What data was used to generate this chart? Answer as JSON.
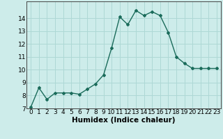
{
  "x": [
    0,
    1,
    2,
    3,
    4,
    5,
    6,
    7,
    8,
    9,
    10,
    11,
    12,
    13,
    14,
    15,
    16,
    17,
    18,
    19,
    20,
    21,
    22,
    23
  ],
  "y": [
    7.1,
    8.6,
    7.7,
    8.2,
    8.2,
    8.2,
    8.1,
    8.5,
    8.9,
    9.6,
    11.7,
    14.1,
    13.5,
    14.6,
    14.2,
    14.5,
    14.2,
    12.9,
    11.0,
    10.5,
    10.1,
    10.1,
    10.1,
    10.1
  ],
  "xlabel": "Humidex (Indice chaleur)",
  "ylim": [
    7,
    15
  ],
  "xlim_min": -0.5,
  "xlim_max": 23.5,
  "yticks": [
    7,
    8,
    9,
    10,
    11,
    12,
    13,
    14
  ],
  "xticks": [
    0,
    1,
    2,
    3,
    4,
    5,
    6,
    7,
    8,
    9,
    10,
    11,
    12,
    13,
    14,
    15,
    16,
    17,
    18,
    19,
    20,
    21,
    22,
    23
  ],
  "line_color": "#1a6b5a",
  "marker": "D",
  "marker_size": 2.0,
  "bg_color": "#cdecea",
  "grid_color": "#aed8d5",
  "label_fontsize": 7.5,
  "tick_fontsize": 6.5
}
